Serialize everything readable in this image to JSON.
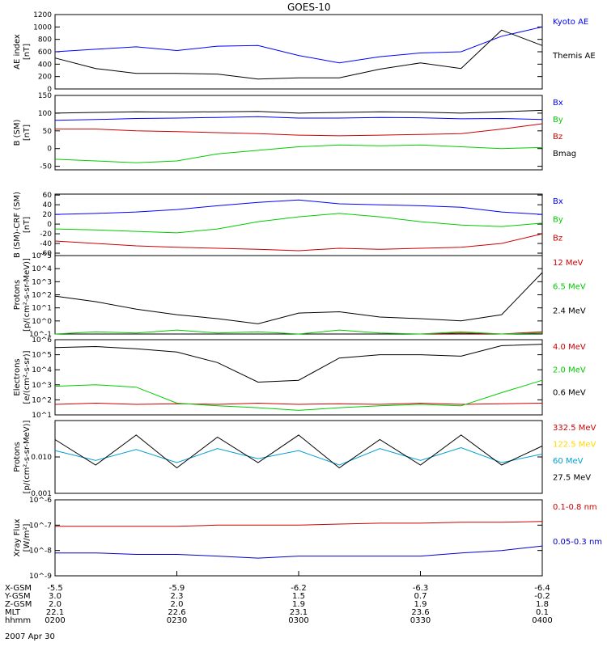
{
  "title": "GOES-10",
  "date": "2007 Apr 30",
  "chart_data": [
    {
      "type": "line",
      "ylabel": "AE index",
      "yunit": "[nT]",
      "ylim": [
        0,
        1200
      ],
      "yticks": [
        0,
        200,
        400,
        600,
        800,
        1000,
        1200
      ],
      "series": [
        {
          "name": "Kyoto AE",
          "color": "#0000ff",
          "t": [
            0,
            10,
            20,
            30,
            40,
            50,
            60,
            70,
            80,
            90,
            100,
            110,
            120
          ],
          "values": [
            600,
            640,
            680,
            620,
            690,
            700,
            540,
            420,
            520,
            580,
            600,
            850,
            1000
          ]
        },
        {
          "name": "Themis AE",
          "color": "#000000",
          "t": [
            0,
            10,
            20,
            30,
            40,
            50,
            60,
            70,
            80,
            90,
            100,
            110,
            120
          ],
          "values": [
            500,
            330,
            250,
            250,
            240,
            160,
            180,
            180,
            320,
            420,
            330,
            950,
            700
          ]
        }
      ]
    },
    {
      "type": "line",
      "ylabel": "B (SM)",
      "yunit": "[nT]",
      "ylim": [
        -60,
        150
      ],
      "yticks": [
        -50,
        0,
        50,
        100,
        150
      ],
      "series": [
        {
          "name": "Bx",
          "color": "#0000ff",
          "t": [
            0,
            10,
            20,
            30,
            40,
            50,
            60,
            70,
            80,
            90,
            100,
            110,
            120
          ],
          "values": [
            80,
            82,
            85,
            86,
            88,
            90,
            86,
            86,
            88,
            87,
            84,
            85,
            82
          ]
        },
        {
          "name": "By",
          "color": "#00cc00",
          "t": [
            0,
            10,
            20,
            30,
            40,
            50,
            60,
            70,
            80,
            90,
            100,
            110,
            120
          ],
          "values": [
            -30,
            -35,
            -40,
            -35,
            -15,
            -5,
            5,
            10,
            8,
            10,
            5,
            0,
            3
          ]
        },
        {
          "name": "Bz",
          "color": "#cc0000",
          "t": [
            0,
            10,
            20,
            30,
            40,
            50,
            60,
            70,
            80,
            90,
            100,
            110,
            120
          ],
          "values": [
            55,
            55,
            50,
            48,
            45,
            42,
            38,
            36,
            38,
            40,
            42,
            55,
            70
          ]
        },
        {
          "name": "Bmag",
          "color": "#000000",
          "t": [
            0,
            10,
            20,
            30,
            40,
            50,
            60,
            70,
            80,
            90,
            100,
            110,
            120
          ],
          "values": [
            100,
            102,
            104,
            103,
            104,
            105,
            100,
            102,
            104,
            103,
            100,
            104,
            108
          ]
        }
      ]
    },
    {
      "type": "line",
      "ylabel": "B (SM)-CRF (SM)",
      "yunit": "[nT]",
      "ylim": [
        -65,
        62
      ],
      "yticks": [
        -60,
        -40,
        -20,
        0,
        20,
        40,
        60
      ],
      "series": [
        {
          "name": "Bx",
          "color": "#0000ff",
          "t": [
            0,
            10,
            20,
            30,
            40,
            50,
            60,
            70,
            80,
            90,
            100,
            110,
            120
          ],
          "values": [
            20,
            22,
            25,
            30,
            38,
            45,
            50,
            42,
            40,
            38,
            35,
            25,
            20
          ]
        },
        {
          "name": "By",
          "color": "#00cc00",
          "t": [
            0,
            10,
            20,
            30,
            40,
            50,
            60,
            70,
            80,
            90,
            100,
            110,
            120
          ],
          "values": [
            -10,
            -12,
            -15,
            -18,
            -10,
            5,
            15,
            22,
            15,
            5,
            -2,
            -5,
            2
          ]
        },
        {
          "name": "Bz",
          "color": "#cc0000",
          "t": [
            0,
            10,
            20,
            30,
            40,
            50,
            60,
            70,
            80,
            90,
            100,
            110,
            120
          ],
          "values": [
            -35,
            -40,
            -45,
            -48,
            -50,
            -52,
            -55,
            -50,
            -52,
            -50,
            -48,
            -40,
            -20
          ]
        }
      ]
    },
    {
      "type": "line",
      "log": true,
      "ylabel": "Protons",
      "yunit": "[p/(cm²-s-sr-MeV)]",
      "ylim": [
        0.1,
        100000
      ],
      "yticks": [
        0.1,
        1,
        10,
        100,
        1000,
        10000,
        100000
      ],
      "series": [
        {
          "name": "12 MeV",
          "color": "#cc0000",
          "t": [
            0,
            10,
            20,
            30,
            40,
            50,
            60,
            70,
            80,
            90,
            100,
            110,
            120
          ],
          "values": [
            null,
            null,
            null,
            null,
            null,
            null,
            null,
            null,
            null,
            0.1,
            0.12,
            0.1,
            0.15
          ]
        },
        {
          "name": "6.5 MeV",
          "color": "#00cc00",
          "t": [
            0,
            10,
            20,
            30,
            40,
            50,
            60,
            70,
            80,
            90,
            100,
            110,
            120
          ],
          "values": [
            0.1,
            0.15,
            0.12,
            0.2,
            0.12,
            0.15,
            0.1,
            0.2,
            0.12,
            0.1,
            0.15,
            0.1,
            0.12
          ]
        },
        {
          "name": "2.4 MeV",
          "color": "#000000",
          "t": [
            0,
            10,
            20,
            30,
            40,
            50,
            60,
            70,
            80,
            90,
            100,
            110,
            120
          ],
          "values": [
            80,
            30,
            8,
            3,
            1.5,
            0.6,
            4,
            5,
            2,
            1.5,
            1,
            3,
            5000
          ]
        }
      ]
    },
    {
      "type": "line",
      "log": true,
      "ylabel": "Electrons",
      "yunit": "[e/(cm²-s-sr)]",
      "ylim": [
        10,
        1000000
      ],
      "yticks": [
        10,
        100,
        1000,
        10000,
        100000,
        1000000
      ],
      "series": [
        {
          "name": "4.0 MeV",
          "color": "#cc0000",
          "t": [
            0,
            10,
            20,
            30,
            40,
            50,
            60,
            70,
            80,
            90,
            100,
            110,
            120
          ],
          "values": [
            50,
            60,
            50,
            55,
            50,
            60,
            50,
            55,
            50,
            60,
            50,
            55,
            60
          ]
        },
        {
          "name": "2.0 MeV",
          "color": "#00cc00",
          "t": [
            0,
            10,
            20,
            30,
            40,
            50,
            60,
            70,
            80,
            90,
            100,
            110,
            120
          ],
          "values": [
            800,
            1000,
            700,
            60,
            40,
            30,
            20,
            30,
            40,
            50,
            40,
            300,
            2000
          ]
        },
        {
          "name": "0.6 MeV",
          "color": "#000000",
          "t": [
            0,
            10,
            20,
            30,
            40,
            50,
            60,
            70,
            80,
            90,
            100,
            110,
            120
          ],
          "values": [
            300000,
            350000,
            250000,
            150000,
            30000,
            1500,
            2000,
            60000,
            100000,
            100000,
            80000,
            400000,
            500000
          ]
        }
      ]
    },
    {
      "type": "line",
      "log": true,
      "ylabel": "Protons",
      "yunit": "[p/(cm²-s-sr-MeV)]",
      "ylim": [
        0.001,
        0.1
      ],
      "yticks": [
        0.001,
        0.01
      ],
      "series": [
        {
          "name": "332.5 MeV",
          "color": "#cc0000",
          "t": [],
          "values": []
        },
        {
          "name": "122.5 MeV",
          "color": "#ffd700",
          "t": [],
          "values": []
        },
        {
          "name": "60 MeV",
          "color": "#00a0d0",
          "t": [
            0,
            10,
            20,
            30,
            40,
            50,
            60,
            70,
            80,
            90,
            100,
            110,
            120
          ],
          "values": [
            0.015,
            0.008,
            0.016,
            0.007,
            0.017,
            0.009,
            0.015,
            0.006,
            0.017,
            0.008,
            0.018,
            0.007,
            0.012
          ]
        },
        {
          "name": "27.5 MeV",
          "color": "#000000",
          "t": [
            0,
            10,
            20,
            30,
            40,
            50,
            60,
            70,
            80,
            90,
            100,
            110,
            120
          ],
          "values": [
            0.03,
            0.006,
            0.04,
            0.005,
            0.035,
            0.007,
            0.04,
            0.005,
            0.03,
            0.006,
            0.04,
            0.006,
            0.02
          ]
        }
      ]
    },
    {
      "type": "line",
      "log": true,
      "ylabel": "Xray Flux",
      "yunit": "[W/m²]",
      "ylim": [
        1e-09,
        1e-06
      ],
      "yticks": [
        1e-09,
        1e-08,
        1e-07,
        1e-06
      ],
      "series": [
        {
          "name": "0.1-0.8 nm",
          "color": "#cc0000",
          "t": [
            0,
            10,
            20,
            30,
            40,
            50,
            60,
            70,
            80,
            90,
            100,
            110,
            120
          ],
          "values": [
            9e-08,
            9e-08,
            9e-08,
            9e-08,
            1e-07,
            1e-07,
            1e-07,
            1.1e-07,
            1.2e-07,
            1.2e-07,
            1.3e-07,
            1.3e-07,
            1.4e-07
          ]
        },
        {
          "name": "0.05-0.3 nm",
          "color": "#0000cc",
          "t": [
            0,
            10,
            20,
            30,
            40,
            50,
            60,
            70,
            80,
            90,
            100,
            110,
            120
          ],
          "values": [
            8e-09,
            8e-09,
            7e-09,
            7e-09,
            6e-09,
            5e-09,
            6e-09,
            6e-09,
            6e-09,
            6e-09,
            8e-09,
            1e-08,
            1.5e-08
          ]
        }
      ]
    }
  ],
  "x_axis": {
    "row_labels": [
      "X-GSM",
      "Y-GSM",
      "Z-GSM",
      "MLT",
      "hhmm"
    ],
    "ticks": [
      {
        "t": 0,
        "values": [
          "-5.5",
          "3.0",
          "2.0",
          "22.1",
          "0200"
        ]
      },
      {
        "t": 30,
        "values": [
          "-5.9",
          "2.3",
          "2.0",
          "22.6",
          "0230"
        ]
      },
      {
        "t": 60,
        "values": [
          "-6.2",
          "1.5",
          "1.9",
          "23.1",
          "0300"
        ]
      },
      {
        "t": 90,
        "values": [
          "-6.3",
          "0.7",
          "1.9",
          "23.6",
          "0330"
        ]
      },
      {
        "t": 120,
        "values": [
          "-6.4",
          "-0.2",
          "1.8",
          "0.1",
          "0400"
        ]
      }
    ]
  }
}
